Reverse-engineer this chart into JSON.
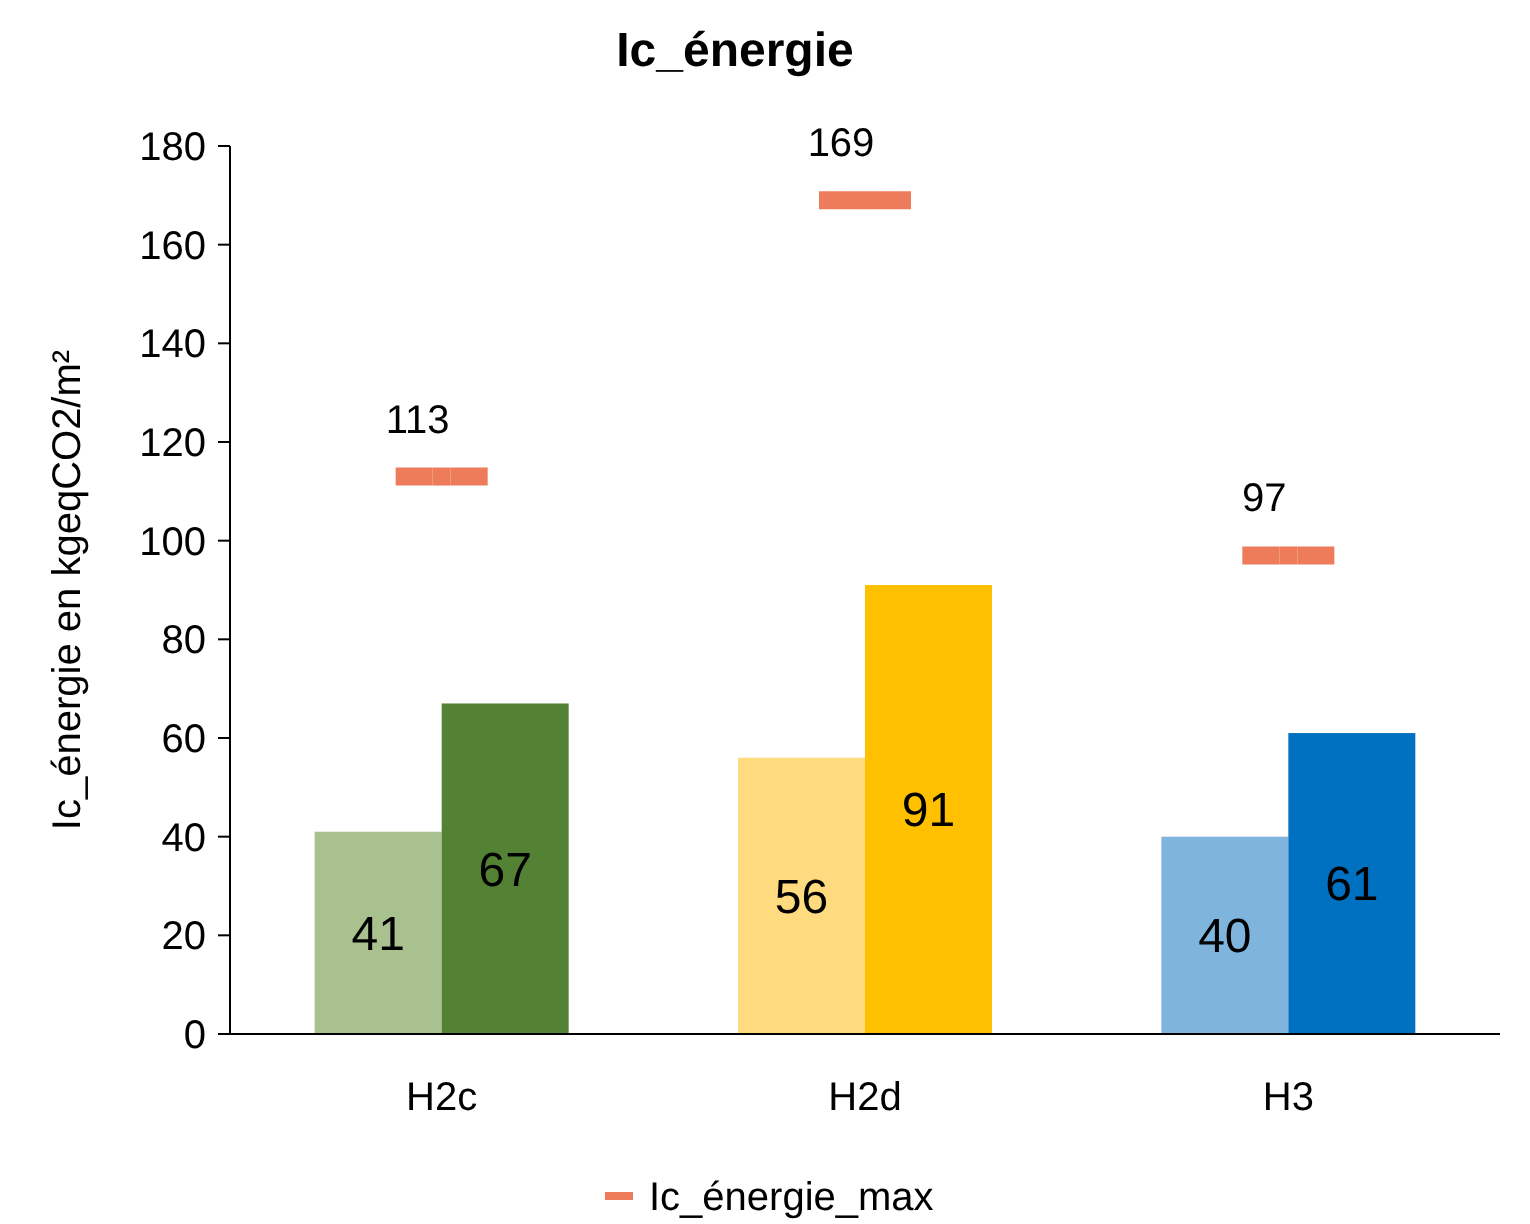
{
  "chart_data": {
    "type": "bar",
    "title": "Ic_énergie",
    "ylabel": "Ic_énergie en kgeqCO2/m²",
    "categories": [
      "H2c",
      "H2d",
      "H3"
    ],
    "series": [
      {
        "colors": [
          "#a9c08f",
          "#ffdb7f",
          "#7fb4dd"
        ],
        "values": [
          41,
          56,
          40
        ]
      },
      {
        "colors": [
          "#548235",
          "#ffc000",
          "#0070c0"
        ],
        "values": [
          67,
          91,
          61
        ]
      },
      {
        "type": "scatter",
        "name": "Ic_énergie_max",
        "color": "#ee7c5b",
        "values": [
          113,
          169,
          97
        ]
      }
    ],
    "ylim": [
      0,
      180
    ],
    "yticks": [
      0,
      20,
      40,
      60,
      80,
      100,
      120,
      140,
      160,
      180
    ],
    "data_labels": true,
    "legend": "bottom"
  }
}
